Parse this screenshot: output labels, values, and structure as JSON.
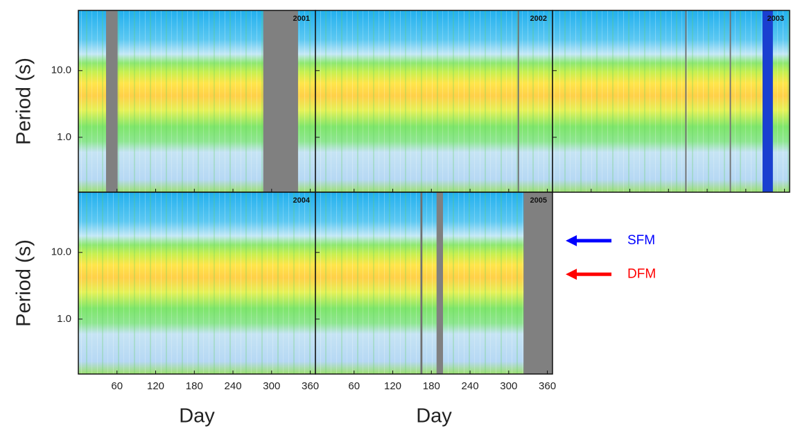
{
  "chart_data": {
    "type": "heatmap",
    "xlabel": "Day",
    "ylabel": "Period (s)",
    "xlim": [
      0,
      368
    ],
    "xticks": [
      60,
      120,
      180,
      240,
      300,
      360
    ],
    "ylim": [
      0.15,
      80
    ],
    "yticks": [
      {
        "value": 10,
        "label": "10.0"
      },
      {
        "value": 1,
        "label": "1.0"
      }
    ],
    "log_y": true,
    "panels": [
      {
        "label": "2001",
        "gaps": [
          {
            "range": [
              43,
              61
            ],
            "color": "#808080"
          },
          {
            "range": [
              287,
              341
            ],
            "color": "#808080"
          }
        ]
      },
      {
        "label": "2002",
        "gaps": [
          {
            "range": [
              314,
              316
            ],
            "color": "#707070"
          }
        ]
      },
      {
        "label": "2003",
        "gaps": [
          {
            "range": [
              206,
              208
            ],
            "color": "#707070"
          },
          {
            "range": [
              275,
              277
            ],
            "color": "#707070"
          },
          {
            "range": [
              326,
              342
            ],
            "color": "#1a3fd0"
          }
        ]
      },
      {
        "label": "2004",
        "gaps": []
      },
      {
        "label": "2005",
        "gaps": [
          {
            "range": [
              163,
              166
            ],
            "color": "#707070"
          },
          {
            "range": [
              188,
              198
            ],
            "color": "#808080"
          },
          {
            "range": [
              323,
              368
            ],
            "color": "#808080"
          }
        ]
      }
    ],
    "annotations": [
      {
        "text": "SFM",
        "color": "#0000ff",
        "period": 15
      },
      {
        "text": "DFM",
        "color": "#ff0000",
        "period": 4.7
      }
    ]
  }
}
